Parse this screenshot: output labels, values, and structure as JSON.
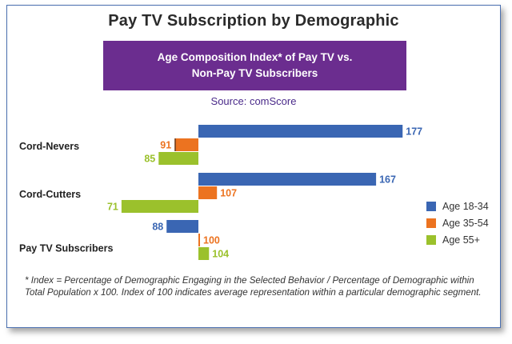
{
  "title": "Pay TV Subscription by Demographic",
  "banner": {
    "line1": "Age Composition Index* of Pay TV vs.",
    "line2": "Non-Pay TV Subscribers"
  },
  "source": "Source: comScore",
  "footnote": "* Index = Percentage of Demographic Engaging in the Selected Behavior / Percentage of Demographic within Total Population x 100. Index of 100 indicates average representation within a particular demographic segment.",
  "colors": {
    "age_18_34": "#3a66b3",
    "age_35_54": "#ec7320",
    "age_55_plus": "#9bc12c",
    "banner": "#6b2d8f"
  },
  "chart_data": {
    "type": "bar",
    "orientation": "horizontal",
    "baseline": 100,
    "categories": [
      "Cord-Nevers",
      "Cord-Cutters",
      "Pay TV Subscribers"
    ],
    "series": [
      {
        "name": "Age 18-34",
        "values": [
          177,
          167,
          88
        ]
      },
      {
        "name": "Age 35-54",
        "values": [
          91,
          107,
          100
        ]
      },
      {
        "name": "Age 55+",
        "values": [
          85,
          71,
          104
        ]
      }
    ],
    "legend_position": "right",
    "grid": false
  }
}
